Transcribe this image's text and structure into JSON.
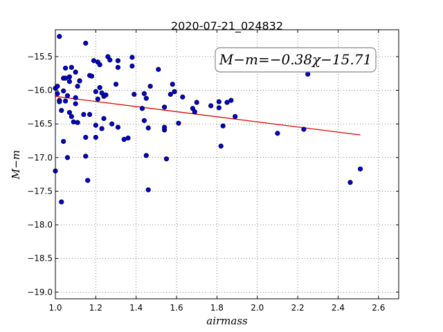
{
  "chart_data": {
    "type": "scatter",
    "title": "2020-07-21_024832",
    "xlabel": "airmass",
    "ylabel": "M−m",
    "xlim": [
      1.0,
      2.7
    ],
    "ylim": [
      -15.1,
      -19.1
    ],
    "y_inverted": true,
    "xticks": [
      1.0,
      1.2,
      1.4,
      1.6,
      1.8,
      2.0,
      2.2,
      2.4,
      2.6
    ],
    "xtick_labels": [
      "1.0",
      "1.2",
      "1.4",
      "1.6",
      "1.8",
      "2.0",
      "2.2",
      "2.4",
      "2.6"
    ],
    "yticks": [
      -15.5,
      -16.0,
      -16.5,
      -17.0,
      -17.5,
      -18.0,
      -18.5,
      -19.0
    ],
    "ytick_labels": [
      "−15.5",
      "−16.0",
      "−16.5",
      "−17.0",
      "−17.5",
      "−18.0",
      "−18.5",
      "−19.0"
    ],
    "grid": true,
    "point_color": "#0000cc",
    "fit_color": "#dd0000",
    "annotation": "M−m=−0.38χ−15.71",
    "fit": {
      "slope": -0.38,
      "intercept": -15.71,
      "x_range": [
        1.0,
        2.51
      ]
    },
    "points": [
      [
        1.0,
        -17.2
      ],
      [
        1.0,
        -15.97
      ],
      [
        1.01,
        -15.94
      ],
      [
        1.01,
        -16.05
      ],
      [
        1.02,
        -16.15
      ],
      [
        1.02,
        -16.17
      ],
      [
        1.02,
        -15.2
      ],
      [
        1.03,
        -16.3
      ],
      [
        1.03,
        -17.66
      ],
      [
        1.04,
        -16.76
      ],
      [
        1.04,
        -15.82
      ],
      [
        1.04,
        -16.01
      ],
      [
        1.05,
        -15.82
      ],
      [
        1.05,
        -15.67
      ],
      [
        1.05,
        -16.16
      ],
      [
        1.06,
        -17.0
      ],
      [
        1.06,
        -16.08
      ],
      [
        1.07,
        -16.33
      ],
      [
        1.07,
        -15.8
      ],
      [
        1.07,
        -15.87
      ],
      [
        1.08,
        -15.66
      ],
      [
        1.08,
        -16.39
      ],
      [
        1.09,
        -16.47
      ],
      [
        1.1,
        -16.11
      ],
      [
        1.1,
        -16.2
      ],
      [
        1.1,
        -15.73
      ],
      [
        1.11,
        -16.48
      ],
      [
        1.11,
        -15.94
      ],
      [
        1.12,
        -15.86
      ],
      [
        1.12,
        -15.86
      ],
      [
        1.14,
        -16.36
      ],
      [
        1.15,
        -16.7
      ],
      [
        1.15,
        -16.98
      ],
      [
        1.15,
        -15.3
      ],
      [
        1.16,
        -17.34
      ],
      [
        1.17,
        -16.36
      ],
      [
        1.17,
        -15.78
      ],
      [
        1.18,
        -15.79
      ],
      [
        1.19,
        -15.56
      ],
      [
        1.2,
        -16.02
      ],
      [
        1.2,
        -16.52
      ],
      [
        1.2,
        -16.7
      ],
      [
        1.21,
        -15.58
      ],
      [
        1.21,
        -16.13
      ],
      [
        1.22,
        -15.96
      ],
      [
        1.22,
        -15.62
      ],
      [
        1.23,
        -16.04
      ],
      [
        1.23,
        -16.57
      ],
      [
        1.24,
        -16.09
      ],
      [
        1.24,
        -16.42
      ],
      [
        1.25,
        -16.07
      ],
      [
        1.26,
        -15.5
      ],
      [
        1.27,
        -15.55
      ],
      [
        1.28,
        -16.5
      ],
      [
        1.3,
        -15.91
      ],
      [
        1.31,
        -16.55
      ],
      [
        1.31,
        -15.66
      ],
      [
        1.31,
        -15.56
      ],
      [
        1.34,
        -16.73
      ],
      [
        1.36,
        -16.71
      ],
      [
        1.38,
        -15.64
      ],
      [
        1.38,
        -15.51
      ],
      [
        1.39,
        -16.06
      ],
      [
        1.43,
        -16.27
      ],
      [
        1.44,
        -16.45
      ],
      [
        1.44,
        -16.05
      ],
      [
        1.45,
        -16.12
      ],
      [
        1.45,
        -16.97
      ],
      [
        1.46,
        -16.56
      ],
      [
        1.46,
        -17.48
      ],
      [
        1.47,
        -15.94
      ],
      [
        1.51,
        -15.69
      ],
      [
        1.54,
        -16.59
      ],
      [
        1.54,
        -16.55
      ],
      [
        1.54,
        -16.25
      ],
      [
        1.55,
        -17.02
      ],
      [
        1.57,
        -16.06
      ],
      [
        1.58,
        -15.91
      ],
      [
        1.59,
        -16.02
      ],
      [
        1.61,
        -16.49
      ],
      [
        1.63,
        -16.1
      ],
      [
        1.68,
        -16.27
      ],
      [
        1.69,
        -16.32
      ],
      [
        1.7,
        -16.18
      ],
      [
        1.77,
        -16.23
      ],
      [
        1.81,
        -16.26
      ],
      [
        1.81,
        -16.17
      ],
      [
        1.82,
        -16.83
      ],
      [
        1.83,
        -16.53
      ],
      [
        1.85,
        -16.18
      ],
      [
        1.87,
        -16.15
      ],
      [
        1.89,
        -16.39
      ],
      [
        2.1,
        -16.64
      ],
      [
        2.23,
        -16.58
      ],
      [
        2.25,
        -15.76
      ],
      [
        2.46,
        -17.37
      ],
      [
        2.51,
        -17.17
      ]
    ]
  }
}
